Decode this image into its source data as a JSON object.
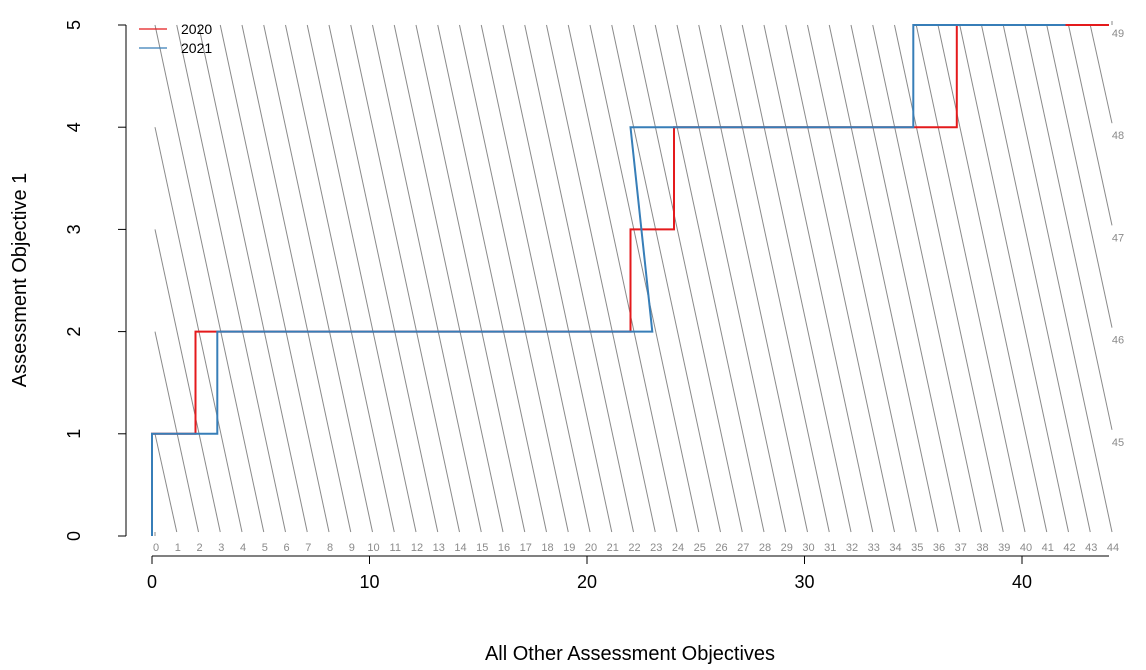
{
  "chart_data": {
    "type": "line",
    "xlabel": "All Other Assessment Objectives",
    "ylabel": "Assessment Objective 1",
    "xlim": [
      0,
      44
    ],
    "ylim": [
      0,
      5
    ],
    "x_ticks": [
      0,
      10,
      20,
      30,
      40
    ],
    "y_ticks": [
      0,
      1,
      2,
      3,
      4,
      5
    ],
    "grid": false,
    "legend_position": "top-left",
    "total_lines": {
      "bottom_labels": [
        "0",
        "1",
        "2",
        "3",
        "4",
        "5",
        "6",
        "7",
        "8",
        "9",
        "10",
        "11",
        "12",
        "13",
        "14",
        "15",
        "16",
        "17",
        "18",
        "19",
        "20",
        "21",
        "22",
        "23",
        "24",
        "25",
        "26",
        "27",
        "28",
        "29",
        "30",
        "31",
        "32",
        "33",
        "34",
        "35",
        "36",
        "37",
        "38",
        "39",
        "40",
        "41",
        "42",
        "43",
        "44"
      ],
      "right_labels": [
        "45",
        "46",
        "47",
        "48",
        "49"
      ],
      "color": "#8a8a8a"
    },
    "series": [
      {
        "name": "2020",
        "color": "#e41a1c",
        "x": [
          0,
          0,
          2,
          2,
          22,
          22,
          24,
          24,
          37,
          37,
          44
        ],
        "y": [
          0,
          1,
          1,
          2,
          2,
          3,
          3,
          4,
          4,
          5,
          5
        ]
      },
      {
        "name": "2021",
        "color": "#377eb8",
        "x": [
          0,
          0,
          3,
          3,
          23,
          22,
          35,
          35,
          42
        ],
        "y": [
          0,
          1,
          1,
          2,
          2,
          4,
          4,
          5,
          5
        ]
      }
    ]
  }
}
